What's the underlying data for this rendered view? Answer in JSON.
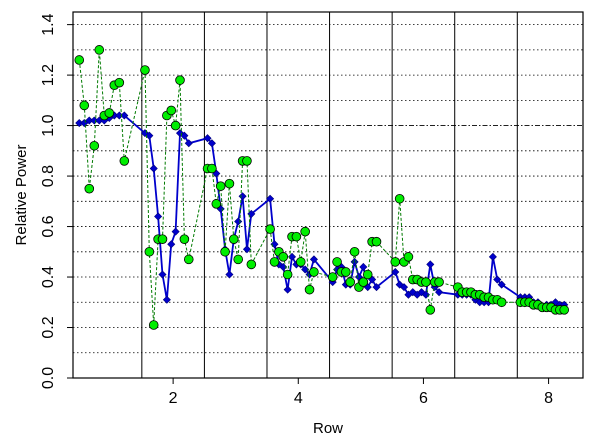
{
  "chart_data": {
    "type": "line",
    "xlabel": "Row",
    "ylabel": "Relative Power",
    "xlim": [
      0.4,
      8.55
    ],
    "ylim": [
      0.0,
      1.45
    ],
    "x_ticks": [
      2,
      4,
      6,
      8
    ],
    "y_ticks": [
      0.0,
      0.2,
      0.4,
      0.6,
      0.8,
      1.0,
      1.2,
      1.4
    ],
    "row_separators": [
      1.5,
      2.5,
      3.5,
      4.5,
      5.5,
      6.5,
      7.5
    ],
    "grid": "horizontal dotted lines every 0.1, vertical solid lines between rows",
    "reference_line": 1.0,
    "legend": "none",
    "series": [
      {
        "color": "#0000cc",
        "marker": "diamond",
        "line_style": "solid",
        "x": [
          0.5,
          0.58,
          0.66,
          0.74,
          0.82,
          0.9,
          0.98,
          1.06,
          1.14,
          1.22,
          1.55,
          1.62,
          1.69,
          1.76,
          1.83,
          1.9,
          1.97,
          2.04,
          2.11,
          2.18,
          2.25,
          2.55,
          2.62,
          2.69,
          2.76,
          2.83,
          2.9,
          2.97,
          3.04,
          3.11,
          3.18,
          3.25,
          3.55,
          3.62,
          3.69,
          3.76,
          3.83,
          3.9,
          3.97,
          4.04,
          4.11,
          4.18,
          4.25,
          4.55,
          4.62,
          4.69,
          4.76,
          4.83,
          4.9,
          4.97,
          5.04,
          5.11,
          5.18,
          5.25,
          5.55,
          5.62,
          5.69,
          5.76,
          5.83,
          5.9,
          5.97,
          6.04,
          6.11,
          6.18,
          6.25,
          6.55,
          6.62,
          6.69,
          6.76,
          6.83,
          6.9,
          6.97,
          7.04,
          7.11,
          7.18,
          7.25,
          7.55,
          7.62,
          7.69,
          7.76,
          7.83,
          7.9,
          7.97,
          8.04,
          8.11,
          8.18,
          8.25
        ],
        "values": [
          1.01,
          1.01,
          1.02,
          1.02,
          1.02,
          1.02,
          1.03,
          1.04,
          1.04,
          1.04,
          0.97,
          0.96,
          0.83,
          0.64,
          0.41,
          0.31,
          0.53,
          0.58,
          0.97,
          0.96,
          0.93,
          0.95,
          0.93,
          0.81,
          0.67,
          0.51,
          0.41,
          0.55,
          0.62,
          0.72,
          0.51,
          0.65,
          0.71,
          0.53,
          0.45,
          0.44,
          0.35,
          0.48,
          0.45,
          0.45,
          0.43,
          0.41,
          0.47,
          0.38,
          0.43,
          0.44,
          0.37,
          0.37,
          0.46,
          0.4,
          0.44,
          0.36,
          0.39,
          0.36,
          0.42,
          0.37,
          0.36,
          0.33,
          0.34,
          0.33,
          0.34,
          0.33,
          0.45,
          0.36,
          0.34,
          0.33,
          0.33,
          0.33,
          0.33,
          0.31,
          0.3,
          0.3,
          0.3,
          0.48,
          0.39,
          0.37,
          0.32,
          0.32,
          0.32,
          0.3,
          0.3,
          0.28,
          0.29,
          0.29,
          0.3,
          0.29,
          0.29
        ]
      },
      {
        "color": "#00ee00",
        "marker": "circle",
        "line_style": "dashed",
        "x": [
          0.5,
          0.58,
          0.66,
          0.74,
          0.82,
          0.9,
          0.98,
          1.06,
          1.14,
          1.22,
          1.55,
          1.62,
          1.69,
          1.76,
          1.83,
          1.9,
          1.97,
          2.04,
          2.11,
          2.18,
          2.25,
          2.55,
          2.62,
          2.69,
          2.76,
          2.83,
          2.9,
          2.97,
          3.04,
          3.11,
          3.18,
          3.25,
          3.55,
          3.62,
          3.69,
          3.76,
          3.83,
          3.9,
          3.97,
          4.04,
          4.11,
          4.18,
          4.25,
          4.55,
          4.62,
          4.69,
          4.76,
          4.83,
          4.9,
          4.97,
          5.04,
          5.11,
          5.18,
          5.25,
          5.55,
          5.62,
          5.69,
          5.76,
          5.83,
          5.9,
          5.97,
          6.04,
          6.11,
          6.18,
          6.25,
          6.55,
          6.62,
          6.69,
          6.76,
          6.83,
          6.9,
          6.97,
          7.04,
          7.11,
          7.18,
          7.25,
          7.55,
          7.62,
          7.69,
          7.76,
          7.83,
          7.9,
          7.97,
          8.04,
          8.11,
          8.18,
          8.25
        ],
        "values": [
          1.26,
          1.08,
          0.75,
          0.92,
          1.3,
          1.04,
          1.05,
          1.16,
          1.17,
          0.86,
          1.22,
          0.5,
          0.21,
          0.55,
          0.55,
          1.04,
          1.06,
          1.0,
          1.18,
          0.55,
          0.47,
          0.83,
          0.83,
          0.69,
          0.76,
          0.5,
          0.77,
          0.55,
          0.47,
          0.86,
          0.86,
          0.45,
          0.59,
          0.46,
          0.5,
          0.48,
          0.41,
          0.56,
          0.56,
          0.46,
          0.58,
          0.35,
          0.42,
          0.4,
          0.46,
          0.42,
          0.42,
          0.38,
          0.5,
          0.36,
          0.38,
          0.41,
          0.54,
          0.54,
          0.46,
          0.71,
          0.46,
          0.48,
          0.39,
          0.39,
          0.38,
          0.38,
          0.27,
          0.38,
          0.38,
          0.36,
          0.34,
          0.34,
          0.34,
          0.33,
          0.33,
          0.32,
          0.32,
          0.31,
          0.31,
          0.3,
          0.3,
          0.3,
          0.3,
          0.29,
          0.29,
          0.28,
          0.28,
          0.28,
          0.27,
          0.27,
          0.27
        ]
      }
    ]
  }
}
